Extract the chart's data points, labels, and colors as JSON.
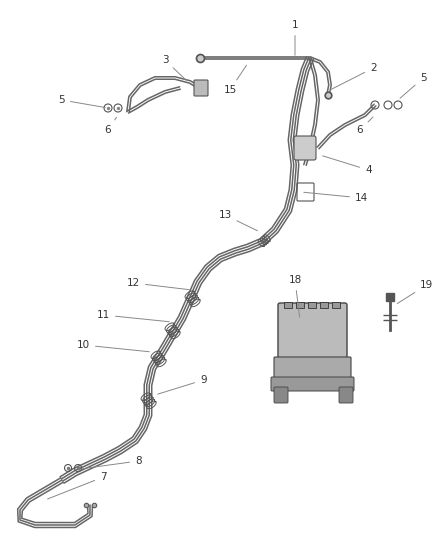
{
  "bg_color": "#ffffff",
  "line_color": "#555555",
  "label_color": "#333333",
  "label_fontsize": 7.5,
  "fig_width": 4.38,
  "fig_height": 5.33,
  "dpi": 100
}
